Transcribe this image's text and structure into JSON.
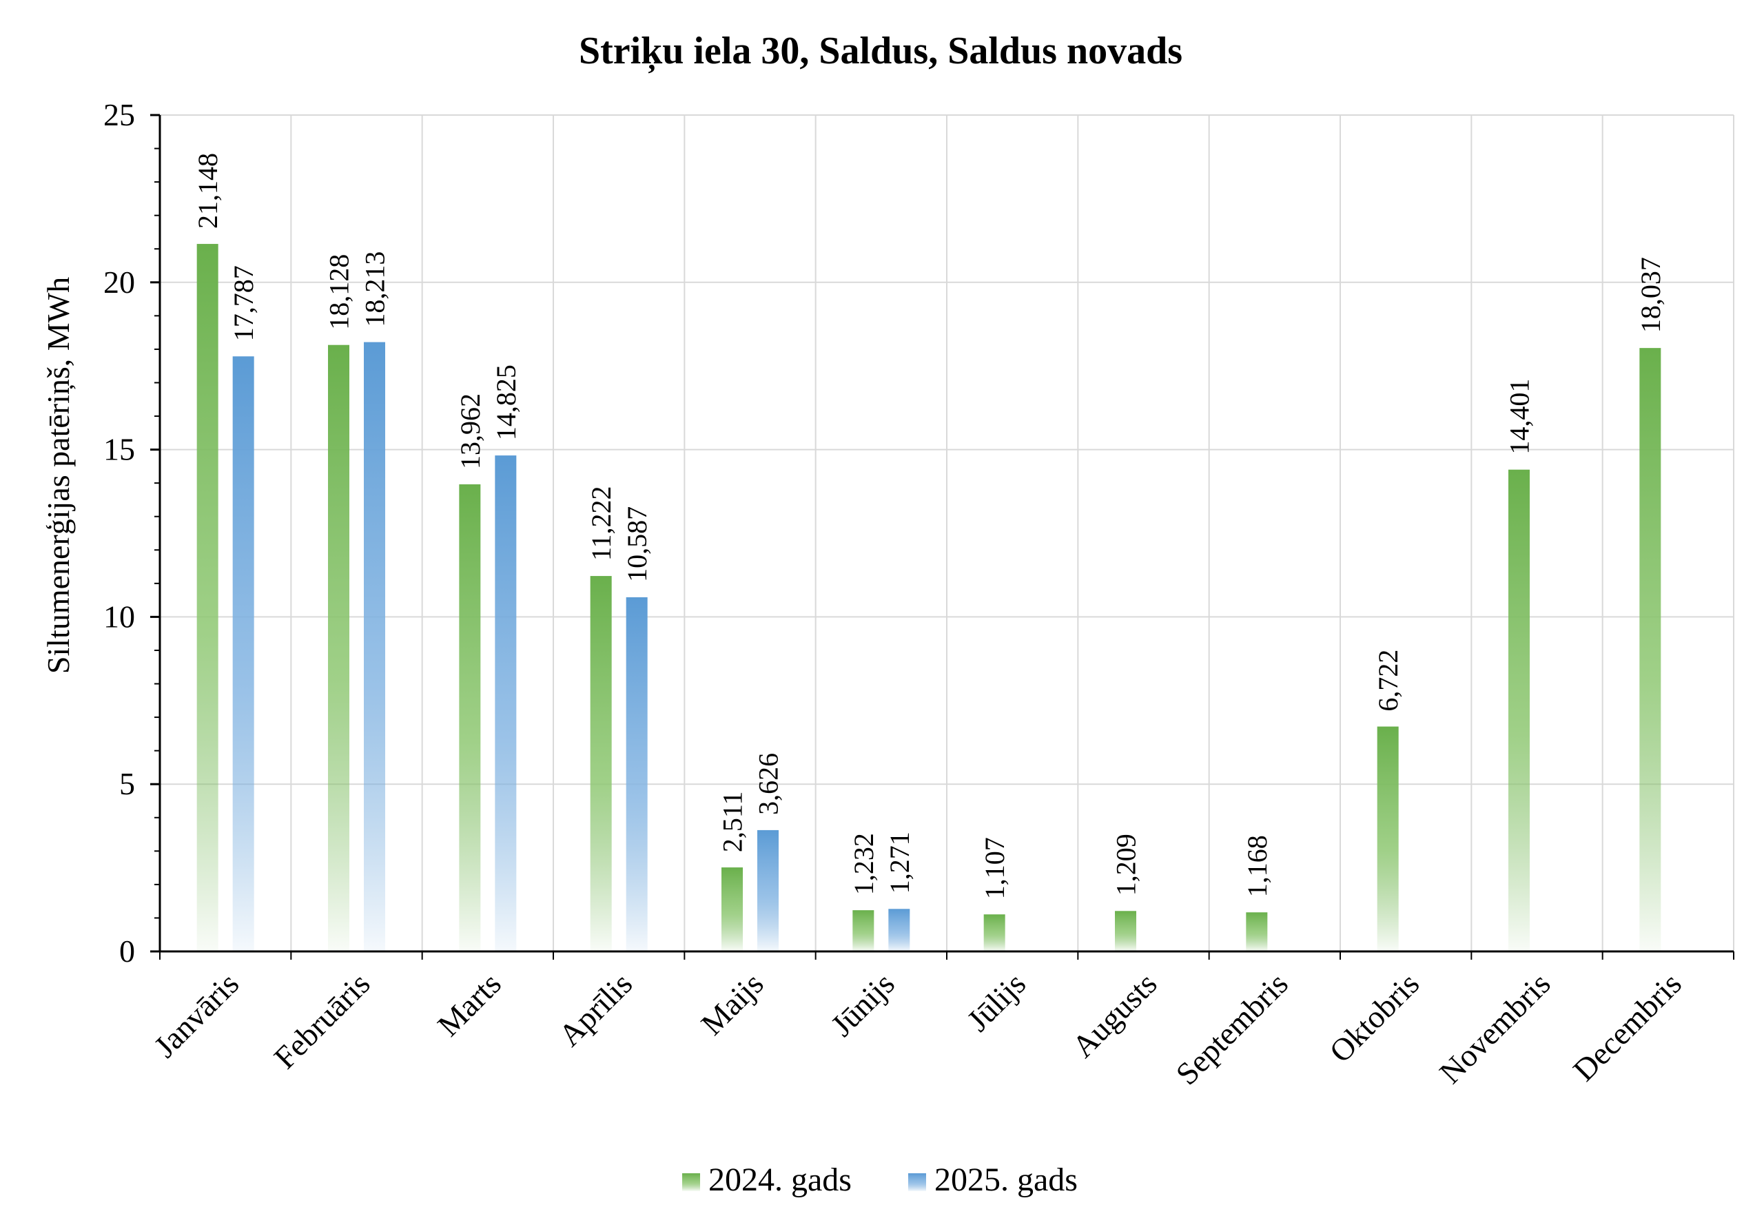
{
  "chart_data": {
    "type": "bar",
    "title": "Striķu iela 30, Saldus, Saldus novads",
    "xlabel": "",
    "ylabel": "Siltumenerģijas patēriņš, MWh",
    "ylim": [
      0,
      25
    ],
    "yticks": [
      0,
      5,
      10,
      15,
      20,
      25
    ],
    "grid": true,
    "legend_position": "bottom",
    "categories": [
      "Janvāris",
      "Februāris",
      "Marts",
      "Aprīlis",
      "Maijs",
      "Jūnijs",
      "Jūlijs",
      "Augusts",
      "Septembris",
      "Oktobris",
      "Novembris",
      "Decembris"
    ],
    "series": [
      {
        "name": "2024. gads",
        "color": "#6ab04c",
        "values": [
          21.148,
          18.128,
          13.962,
          11.222,
          2.511,
          1.232,
          1.107,
          1.209,
          1.168,
          6.722,
          14.401,
          18.037
        ],
        "labels": [
          "21,148",
          "18,128",
          "13,962",
          "11,222",
          "2,511",
          "1,232",
          "1,107",
          "1,209",
          "1,168",
          "6,722",
          "14,401",
          "18,037"
        ]
      },
      {
        "name": "2025. gads",
        "color": "#5b9bd5",
        "values": [
          17.787,
          18.213,
          14.825,
          10.587,
          3.626,
          1.271,
          null,
          null,
          null,
          null,
          null,
          null
        ],
        "labels": [
          "17,787",
          "18,213",
          "14,825",
          "10,587",
          "3,626",
          "1,271",
          "",
          "",
          "",
          "",
          "",
          ""
        ]
      }
    ]
  }
}
